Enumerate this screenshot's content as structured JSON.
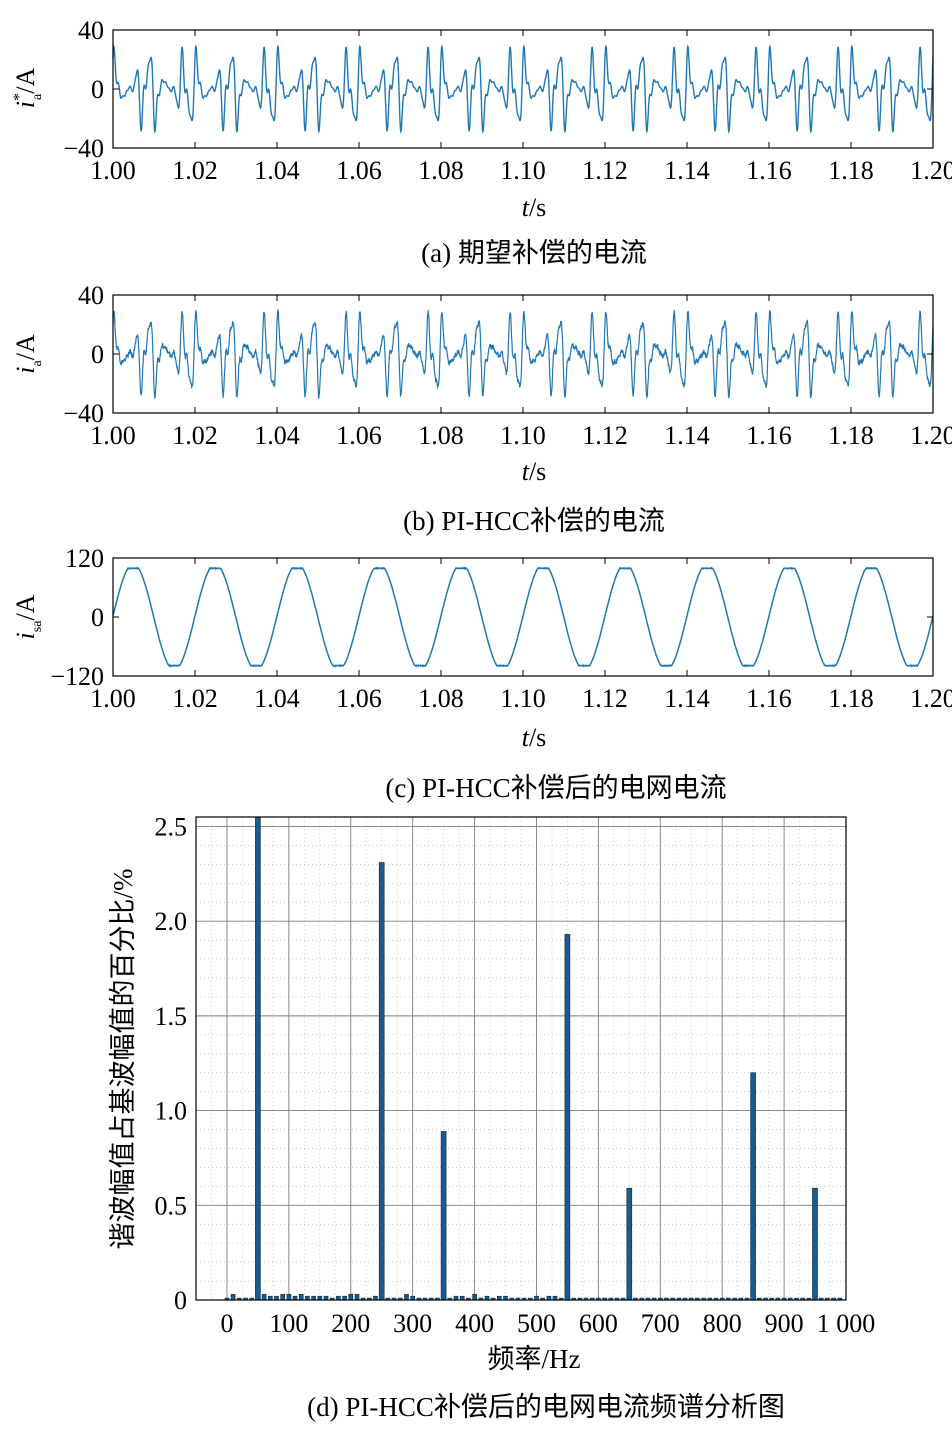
{
  "colors": {
    "trace": "#1f77b4",
    "bar": "#1b5a8a",
    "bar_edge": "#0b2c47",
    "axis": "#000000",
    "grid": "#7f7f7f"
  },
  "chart_data": [
    {
      "type": "line",
      "caption": "(a) 期望补偿的电流",
      "ylabel": {
        "var": "i",
        "sup": "*",
        "sub": "a",
        "unit": "/A"
      },
      "xlabel": {
        "var": "t",
        "unit": "/s"
      },
      "xlim": [
        1.0,
        1.2
      ],
      "ylim": [
        -40,
        40
      ],
      "xticks": [
        "1.00",
        "1.02",
        "1.04",
        "1.06",
        "1.08",
        "1.10",
        "1.12",
        "1.14",
        "1.16",
        "1.18",
        "1.20"
      ],
      "yticks": [
        "40",
        "0",
        "−40"
      ],
      "series": [
        {
          "waveform": "harmonic current",
          "fundamental_hz": 50,
          "peak": 32,
          "min": -33,
          "noise": 0
        }
      ]
    },
    {
      "type": "line",
      "caption": "(b) PI-HCC补偿的电流",
      "ylabel": {
        "var": "i",
        "sup": "",
        "sub": "a",
        "unit": "/A"
      },
      "xlabel": {
        "var": "t",
        "unit": "/s"
      },
      "xlim": [
        1.0,
        1.2
      ],
      "ylim": [
        -40,
        40
      ],
      "xticks": [
        "1.00",
        "1.02",
        "1.04",
        "1.06",
        "1.08",
        "1.10",
        "1.12",
        "1.14",
        "1.16",
        "1.18",
        "1.20"
      ],
      "yticks": [
        "40",
        "0",
        "−40"
      ],
      "series": [
        {
          "waveform": "harmonic current with switching ripple",
          "fundamental_hz": 50,
          "peak": 32,
          "min": -33,
          "noise": 1.5
        }
      ]
    },
    {
      "type": "line",
      "caption": "(c) PI-HCC补偿后的电网电流",
      "ylabel": {
        "var": "i",
        "sup": "",
        "sub": "sa",
        "unit": "/A"
      },
      "xlabel": {
        "var": "t",
        "unit": "/s"
      },
      "xlim": [
        1.0,
        1.2
      ],
      "ylim": [
        -120,
        120
      ],
      "xticks": [
        "1.00",
        "1.02",
        "1.04",
        "1.06",
        "1.08",
        "1.10",
        "1.12",
        "1.14",
        "1.16",
        "1.18",
        "1.20"
      ],
      "yticks": [
        "120",
        "0",
        "−120"
      ],
      "series": [
        {
          "waveform": "sinusoid",
          "fundamental_hz": 50,
          "amplitude": 100
        }
      ]
    },
    {
      "type": "bar",
      "caption": "(d) PI-HCC补偿后的电网电流频谱分析图",
      "ylabel": "谐波幅值占基波幅值的百分比/%",
      "xlabel": "频率/Hz",
      "xlim": [
        -50,
        1000
      ],
      "ylim": [
        0,
        2.55
      ],
      "xticks": [
        "0",
        "100",
        "200",
        "300",
        "400",
        "500",
        "600",
        "700",
        "800",
        "900",
        "1 000"
      ],
      "ytick_values": [
        0,
        0.5,
        1.0,
        1.5,
        2.0,
        2.5
      ],
      "yticks": [
        "0",
        "0.5",
        "1.0",
        "1.5",
        "2.0",
        "2.5"
      ],
      "major_bars": [
        {
          "f": 50,
          "v": 2.55
        },
        {
          "f": 250,
          "v": 2.31
        },
        {
          "f": 350,
          "v": 0.89
        },
        {
          "f": 550,
          "v": 1.93
        },
        {
          "f": 650,
          "v": 0.59
        },
        {
          "f": 850,
          "v": 1.2
        },
        {
          "f": 950,
          "v": 0.59
        }
      ],
      "minor_bars": [
        {
          "f": 0,
          "v": 0.01
        },
        {
          "f": 10,
          "v": 0.03
        },
        {
          "f": 20,
          "v": 0.01
        },
        {
          "f": 30,
          "v": 0.01
        },
        {
          "f": 40,
          "v": 0.01
        },
        {
          "f": 60,
          "v": 0.03
        },
        {
          "f": 70,
          "v": 0.02
        },
        {
          "f": 80,
          "v": 0.02
        },
        {
          "f": 90,
          "v": 0.03
        },
        {
          "f": 100,
          "v": 0.03
        },
        {
          "f": 110,
          "v": 0.02
        },
        {
          "f": 120,
          "v": 0.03
        },
        {
          "f": 130,
          "v": 0.02
        },
        {
          "f": 140,
          "v": 0.02
        },
        {
          "f": 150,
          "v": 0.02
        },
        {
          "f": 160,
          "v": 0.02
        },
        {
          "f": 170,
          "v": 0.01
        },
        {
          "f": 180,
          "v": 0.02
        },
        {
          "f": 190,
          "v": 0.02
        },
        {
          "f": 200,
          "v": 0.03
        },
        {
          "f": 210,
          "v": 0.03
        },
        {
          "f": 220,
          "v": 0.01
        },
        {
          "f": 230,
          "v": 0.01
        },
        {
          "f": 240,
          "v": 0.02
        },
        {
          "f": 260,
          "v": 0.01
        },
        {
          "f": 270,
          "v": 0.01
        },
        {
          "f": 280,
          "v": 0.01
        },
        {
          "f": 290,
          "v": 0.03
        },
        {
          "f": 300,
          "v": 0.02
        },
        {
          "f": 310,
          "v": 0.01
        },
        {
          "f": 320,
          "v": 0.01
        },
        {
          "f": 330,
          "v": 0.01
        },
        {
          "f": 340,
          "v": 0.01
        },
        {
          "f": 360,
          "v": 0.01
        },
        {
          "f": 370,
          "v": 0.02
        },
        {
          "f": 380,
          "v": 0.02
        },
        {
          "f": 390,
          "v": 0.01
        },
        {
          "f": 400,
          "v": 0.03
        },
        {
          "f": 410,
          "v": 0.01
        },
        {
          "f": 420,
          "v": 0.02
        },
        {
          "f": 430,
          "v": 0.01
        },
        {
          "f": 440,
          "v": 0.02
        },
        {
          "f": 450,
          "v": 0.02
        },
        {
          "f": 460,
          "v": 0.01
        },
        {
          "f": 470,
          "v": 0.01
        },
        {
          "f": 480,
          "v": 0.01
        },
        {
          "f": 490,
          "v": 0.01
        },
        {
          "f": 500,
          "v": 0.02
        },
        {
          "f": 510,
          "v": 0.01
        },
        {
          "f": 520,
          "v": 0.02
        },
        {
          "f": 530,
          "v": 0.02
        },
        {
          "f": 540,
          "v": 0.01
        },
        {
          "f": 560,
          "v": 0.01
        },
        {
          "f": 570,
          "v": 0.01
        },
        {
          "f": 580,
          "v": 0.01
        },
        {
          "f": 590,
          "v": 0.01
        },
        {
          "f": 600,
          "v": 0.01
        },
        {
          "f": 610,
          "v": 0.01
        },
        {
          "f": 620,
          "v": 0.01
        },
        {
          "f": 630,
          "v": 0.01
        },
        {
          "f": 640,
          "v": 0.01
        },
        {
          "f": 660,
          "v": 0.01
        },
        {
          "f": 670,
          "v": 0.01
        },
        {
          "f": 680,
          "v": 0.01
        },
        {
          "f": 690,
          "v": 0.01
        },
        {
          "f": 700,
          "v": 0.01
        },
        {
          "f": 710,
          "v": 0.01
        },
        {
          "f": 720,
          "v": 0.01
        },
        {
          "f": 730,
          "v": 0.01
        },
        {
          "f": 740,
          "v": 0.01
        },
        {
          "f": 750,
          "v": 0.01
        },
        {
          "f": 760,
          "v": 0.01
        },
        {
          "f": 770,
          "v": 0.01
        },
        {
          "f": 780,
          "v": 0.01
        },
        {
          "f": 790,
          "v": 0.01
        },
        {
          "f": 800,
          "v": 0.01
        },
        {
          "f": 810,
          "v": 0.01
        },
        {
          "f": 820,
          "v": 0.01
        },
        {
          "f": 830,
          "v": 0.01
        },
        {
          "f": 840,
          "v": 0.01
        },
        {
          "f": 860,
          "v": 0.01
        },
        {
          "f": 870,
          "v": 0.01
        },
        {
          "f": 880,
          "v": 0.01
        },
        {
          "f": 890,
          "v": 0.01
        },
        {
          "f": 900,
          "v": 0.01
        },
        {
          "f": 910,
          "v": 0.01
        },
        {
          "f": 920,
          "v": 0.01
        },
        {
          "f": 930,
          "v": 0.01
        },
        {
          "f": 940,
          "v": 0.01
        },
        {
          "f": 960,
          "v": 0.01
        },
        {
          "f": 970,
          "v": 0.01
        },
        {
          "f": 980,
          "v": 0.01
        },
        {
          "f": 990,
          "v": 0.01
        }
      ]
    }
  ]
}
